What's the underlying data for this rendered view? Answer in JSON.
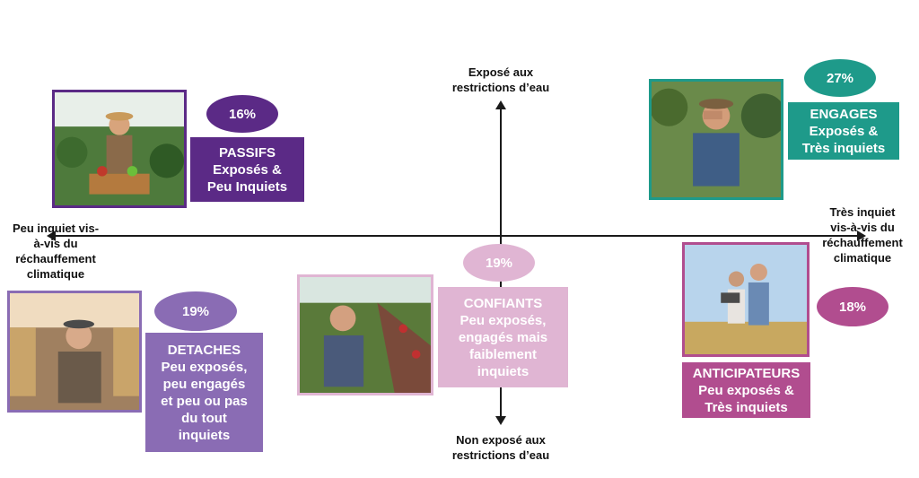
{
  "axes": {
    "top": "Exposé aux\nrestrictions d’eau",
    "bottom": "Non exposé aux\nrestrictions d’eau",
    "left": "Peu inquiet vis-\nà-vis du\nréchauffement\nclimatique",
    "right": "Très inquiet\nvis-à-vis du\nréchauffement\nclimatique"
  },
  "segments": {
    "passifs": {
      "percent": "16%",
      "lines": [
        "PASSIFS",
        "Exposés &",
        "Peu Inquiets"
      ]
    },
    "engages": {
      "percent": "27%",
      "lines": [
        "ENGAGES",
        "Exposés &",
        "Très inquiets"
      ]
    },
    "detaches": {
      "percent": "19%",
      "lines": [
        "DETACHES",
        "Peu exposés,",
        "peu engagés",
        "et peu ou pas",
        "du tout",
        "inquiets"
      ]
    },
    "confiants": {
      "percent": "19%",
      "lines": [
        "CONFIANTS",
        "Peu exposés,",
        "engagés mais",
        "faiblement",
        "inquiets"
      ]
    },
    "anticipateurs": {
      "percent": "18%",
      "lines": [
        "ANTICIPATEURS",
        "Peu exposés &",
        "Très inquiets"
      ]
    }
  },
  "colors": {
    "passifs": "#5b2a86",
    "engages": "#1e9a8a",
    "detaches": "#8a6cb4",
    "confiants": "#e0b5d3",
    "anticipateurs": "#b14d8f"
  }
}
